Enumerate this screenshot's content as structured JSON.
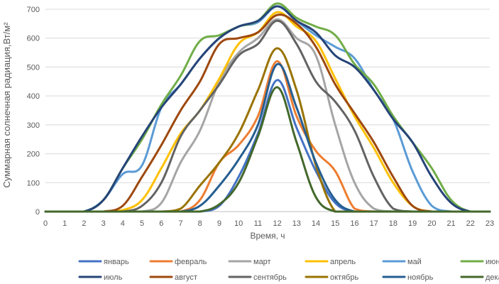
{
  "chart_data": {
    "type": "line",
    "title": "",
    "xlabel": "Время, ч",
    "ylabel": "Суммарная солнечная радиация,Вт/м²",
    "ylim": [
      0,
      700
    ],
    "yticks": [
      0,
      100,
      200,
      300,
      400,
      500,
      600,
      700
    ],
    "x": [
      0,
      1,
      2,
      3,
      4,
      5,
      6,
      7,
      8,
      9,
      10,
      11,
      12,
      13,
      14,
      15,
      16,
      17,
      18,
      19,
      20,
      21,
      22,
      23
    ],
    "grid": "horizontal",
    "legend_position": "bottom",
    "series": [
      {
        "name": "январь",
        "color": "#4472C4",
        "values": [
          0,
          0,
          0,
          0,
          0,
          0,
          0,
          0,
          0,
          20,
          120,
          270,
          455,
          290,
          140,
          30,
          0,
          0,
          0,
          0,
          0,
          0,
          0,
          0
        ]
      },
      {
        "name": "февраль",
        "color": "#ED7D31",
        "values": [
          0,
          0,
          0,
          0,
          0,
          0,
          0,
          0,
          40,
          170,
          230,
          330,
          520,
          330,
          210,
          140,
          10,
          0,
          0,
          0,
          0,
          0,
          0,
          0
        ]
      },
      {
        "name": "март",
        "color": "#A5A5A5",
        "values": [
          0,
          0,
          0,
          0,
          0,
          0,
          30,
          170,
          280,
          450,
          550,
          600,
          665,
          600,
          540,
          300,
          100,
          10,
          0,
          0,
          0,
          0,
          0,
          0
        ]
      },
      {
        "name": "апрель",
        "color": "#FFC000",
        "values": [
          0,
          0,
          0,
          0,
          5,
          40,
          150,
          270,
          350,
          460,
          580,
          620,
          690,
          640,
          590,
          460,
          330,
          220,
          100,
          20,
          0,
          0,
          0,
          0
        ]
      },
      {
        "name": "май",
        "color": "#5B9BD5",
        "values": [
          0,
          0,
          0,
          40,
          130,
          160,
          360,
          440,
          530,
          600,
          640,
          655,
          710,
          660,
          610,
          570,
          530,
          420,
          320,
          140,
          20,
          0,
          0,
          0
        ]
      },
      {
        "name": "июнь",
        "color": "#70AD47",
        "values": [
          0,
          0,
          0,
          40,
          150,
          250,
          370,
          470,
          590,
          610,
          640,
          660,
          720,
          670,
          640,
          610,
          510,
          440,
          330,
          240,
          150,
          40,
          0,
          0
        ]
      },
      {
        "name": "июль",
        "color": "#264478",
        "values": [
          0,
          0,
          0,
          40,
          150,
          260,
          360,
          440,
          530,
          600,
          640,
          660,
          710,
          660,
          620,
          540,
          500,
          420,
          320,
          240,
          120,
          30,
          0,
          0
        ]
      },
      {
        "name": "август",
        "color": "#9E480E",
        "values": [
          0,
          0,
          0,
          0,
          20,
          120,
          230,
          350,
          450,
          580,
          600,
          620,
          680,
          650,
          570,
          440,
          340,
          240,
          120,
          20,
          0,
          0,
          0,
          0
        ]
      },
      {
        "name": "сентябрь",
        "color": "#636363",
        "values": [
          0,
          0,
          0,
          0,
          0,
          20,
          100,
          260,
          350,
          440,
          540,
          580,
          660,
          580,
          450,
          380,
          280,
          120,
          10,
          0,
          0,
          0,
          0,
          0
        ]
      },
      {
        "name": "октябрь",
        "color": "#997300",
        "values": [
          0,
          0,
          0,
          0,
          0,
          0,
          0,
          10,
          90,
          170,
          270,
          420,
          565,
          420,
          160,
          0,
          0,
          0,
          0,
          0,
          0,
          0,
          0,
          0
        ]
      },
      {
        "name": "ноябрь",
        "color": "#255E91",
        "values": [
          0,
          0,
          0,
          0,
          0,
          0,
          0,
          0,
          20,
          90,
          180,
          300,
          510,
          360,
          170,
          40,
          0,
          0,
          0,
          0,
          0,
          0,
          0,
          0
        ]
      },
      {
        "name": "декабрь",
        "color": "#43682B",
        "values": [
          0,
          0,
          0,
          0,
          0,
          0,
          0,
          0,
          0,
          25,
          100,
          260,
          430,
          240,
          50,
          0,
          0,
          0,
          0,
          0,
          0,
          0,
          0,
          0
        ]
      }
    ]
  }
}
